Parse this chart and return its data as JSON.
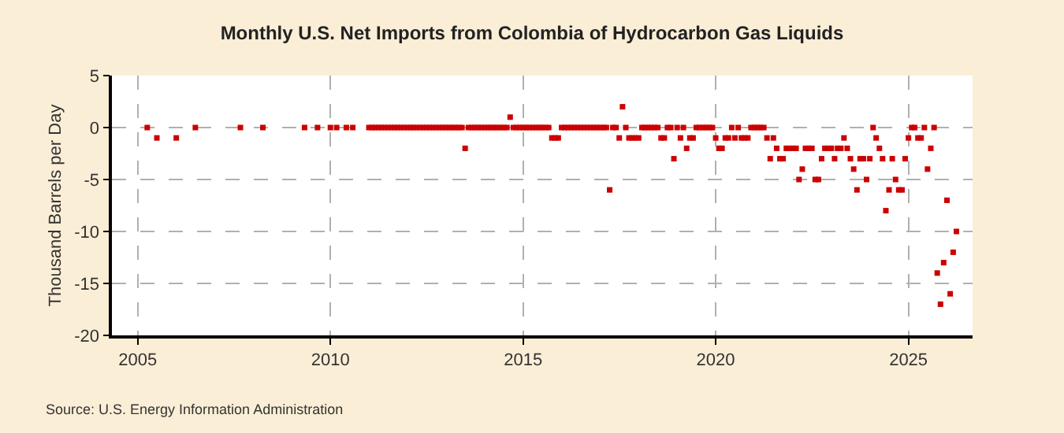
{
  "chart_data": {
    "type": "scatter",
    "title": "Monthly U.S. Net Imports from Colombia of Hydrocarbon Gas Liquids",
    "ylabel": "Thousand Barrels per Day",
    "annotations": [
      "Source: U.S. Energy Information Administration"
    ],
    "x": [
      "2005-04",
      "2005-07",
      "2006-01",
      "2006-07",
      "2007-09",
      "2008-04",
      "2009-05",
      "2009-09",
      "2010-01",
      "2010-03",
      "2010-06",
      "2010-08",
      "2011-01",
      "2011-02",
      "2011-03",
      "2011-04",
      "2011-05",
      "2011-06",
      "2011-07",
      "2011-08",
      "2011-09",
      "2011-10",
      "2011-11",
      "2011-12",
      "2012-01",
      "2012-02",
      "2012-03",
      "2012-04",
      "2012-05",
      "2012-06",
      "2012-07",
      "2012-08",
      "2012-09",
      "2012-10",
      "2012-11",
      "2012-12",
      "2013-01",
      "2013-02",
      "2013-03",
      "2013-04",
      "2013-05",
      "2013-06",
      "2013-07",
      "2013-08",
      "2013-09",
      "2013-10",
      "2013-11",
      "2013-12",
      "2014-01",
      "2014-02",
      "2014-03",
      "2014-04",
      "2014-05",
      "2014-06",
      "2014-07",
      "2014-08",
      "2014-09",
      "2014-10",
      "2014-11",
      "2014-12",
      "2015-01",
      "2015-02",
      "2015-03",
      "2015-04",
      "2015-05",
      "2015-06",
      "2015-07",
      "2015-08",
      "2015-09",
      "2015-10",
      "2015-11",
      "2015-12",
      "2016-01",
      "2016-02",
      "2016-03",
      "2016-04",
      "2016-05",
      "2016-06",
      "2016-07",
      "2016-08",
      "2016-09",
      "2016-10",
      "2016-11",
      "2016-12",
      "2017-01",
      "2017-02",
      "2017-03",
      "2017-04",
      "2017-05",
      "2017-06",
      "2017-07",
      "2017-08",
      "2017-09",
      "2017-10",
      "2017-11",
      "2017-12",
      "2018-01",
      "2018-02",
      "2018-03",
      "2018-04",
      "2018-05",
      "2018-06",
      "2018-07",
      "2018-08",
      "2018-09",
      "2018-10",
      "2018-11",
      "2018-12",
      "2019-01",
      "2019-02",
      "2019-03",
      "2019-04",
      "2019-05",
      "2019-06",
      "2019-07",
      "2019-08",
      "2019-09",
      "2019-10",
      "2019-11",
      "2019-12",
      "2020-01",
      "2020-02",
      "2020-03",
      "2020-04",
      "2020-05",
      "2020-06",
      "2020-07",
      "2020-08",
      "2020-09",
      "2020-10",
      "2020-11",
      "2020-12",
      "2021-01",
      "2021-02",
      "2021-03",
      "2021-04",
      "2021-05",
      "2021-06",
      "2021-07",
      "2021-08",
      "2021-09",
      "2021-10",
      "2021-11",
      "2021-12",
      "2022-01",
      "2022-02",
      "2022-03",
      "2022-04",
      "2022-05",
      "2022-06",
      "2022-07",
      "2022-08",
      "2022-09",
      "2022-10",
      "2022-11",
      "2022-12",
      "2023-01",
      "2023-02",
      "2023-03",
      "2023-04",
      "2023-05",
      "2023-06",
      "2023-07",
      "2023-08",
      "2023-09",
      "2023-10",
      "2023-11",
      "2023-12",
      "2024-01",
      "2024-02",
      "2024-03",
      "2024-04",
      "2024-05",
      "2024-06",
      "2024-07",
      "2024-08",
      "2024-09",
      "2024-10",
      "2024-11",
      "2024-12",
      "2025-01",
      "2025-02",
      "2025-03",
      "2025-04",
      "2025-05",
      "2025-06",
      "2025-07",
      "2025-08",
      "2025-09",
      "2025-10",
      "2025-11",
      "2025-12",
      "2026-01",
      "2026-02",
      "2026-03",
      "2026-04"
    ],
    "series": [
      {
        "color": "#cc0000",
        "values": [
          0,
          -1,
          -1,
          0,
          0,
          0,
          0,
          0,
          0,
          0,
          0,
          0,
          0,
          0,
          0,
          0,
          0,
          0,
          0,
          0,
          0,
          0,
          0,
          0,
          0,
          0,
          0,
          0,
          0,
          0,
          0,
          0,
          0,
          0,
          0,
          0,
          0,
          0,
          0,
          0,
          0,
          0,
          -2,
          0,
          0,
          0,
          0,
          0,
          0,
          0,
          0,
          0,
          0,
          0,
          0,
          0,
          1,
          0,
          0,
          0,
          0,
          0,
          0,
          0,
          0,
          0,
          0,
          0,
          0,
          -1,
          -1,
          -1,
          0,
          0,
          0,
          0,
          0,
          0,
          0,
          0,
          0,
          0,
          0,
          0,
          0,
          0,
          0,
          -6,
          0,
          0,
          -1,
          2,
          0,
          -1,
          -1,
          -1,
          -1,
          0,
          0,
          0,
          0,
          0,
          0,
          -1,
          -1,
          0,
          0,
          -3,
          0,
          -1,
          0,
          -2,
          -1,
          -1,
          0,
          0,
          0,
          0,
          0,
          0,
          -1,
          -2,
          -2,
          -1,
          -1,
          0,
          -1,
          0,
          -1,
          -1,
          -1,
          0,
          0,
          0,
          0,
          0,
          -1,
          -3,
          -1,
          -2,
          -3,
          -3,
          -2,
          -2,
          -2,
          -2,
          -5,
          -4,
          -2,
          -2,
          -2,
          -5,
          -5,
          -3,
          -2,
          -2,
          -2,
          -3,
          -2,
          -2,
          -1,
          -2,
          -3,
          -4,
          -6,
          -3,
          -3,
          -5,
          -3,
          0,
          -1,
          -2,
          -3,
          -8,
          -6,
          -3,
          -5,
          -6,
          -6,
          -3,
          -1,
          0,
          0,
          -1,
          -1,
          0,
          -4,
          -2,
          0,
          -14,
          -17,
          -13,
          -7,
          -16,
          -12,
          -10
        ]
      }
    ],
    "xlim": [
      "2004-05",
      "2026-09"
    ],
    "xticks": [
      "2005",
      "2010",
      "2015",
      "2020",
      "2025"
    ],
    "ylim": [
      -20,
      5
    ],
    "yticks": [
      -20,
      -15,
      -10,
      -5,
      0,
      5
    ],
    "grid": true,
    "marker": "square"
  }
}
